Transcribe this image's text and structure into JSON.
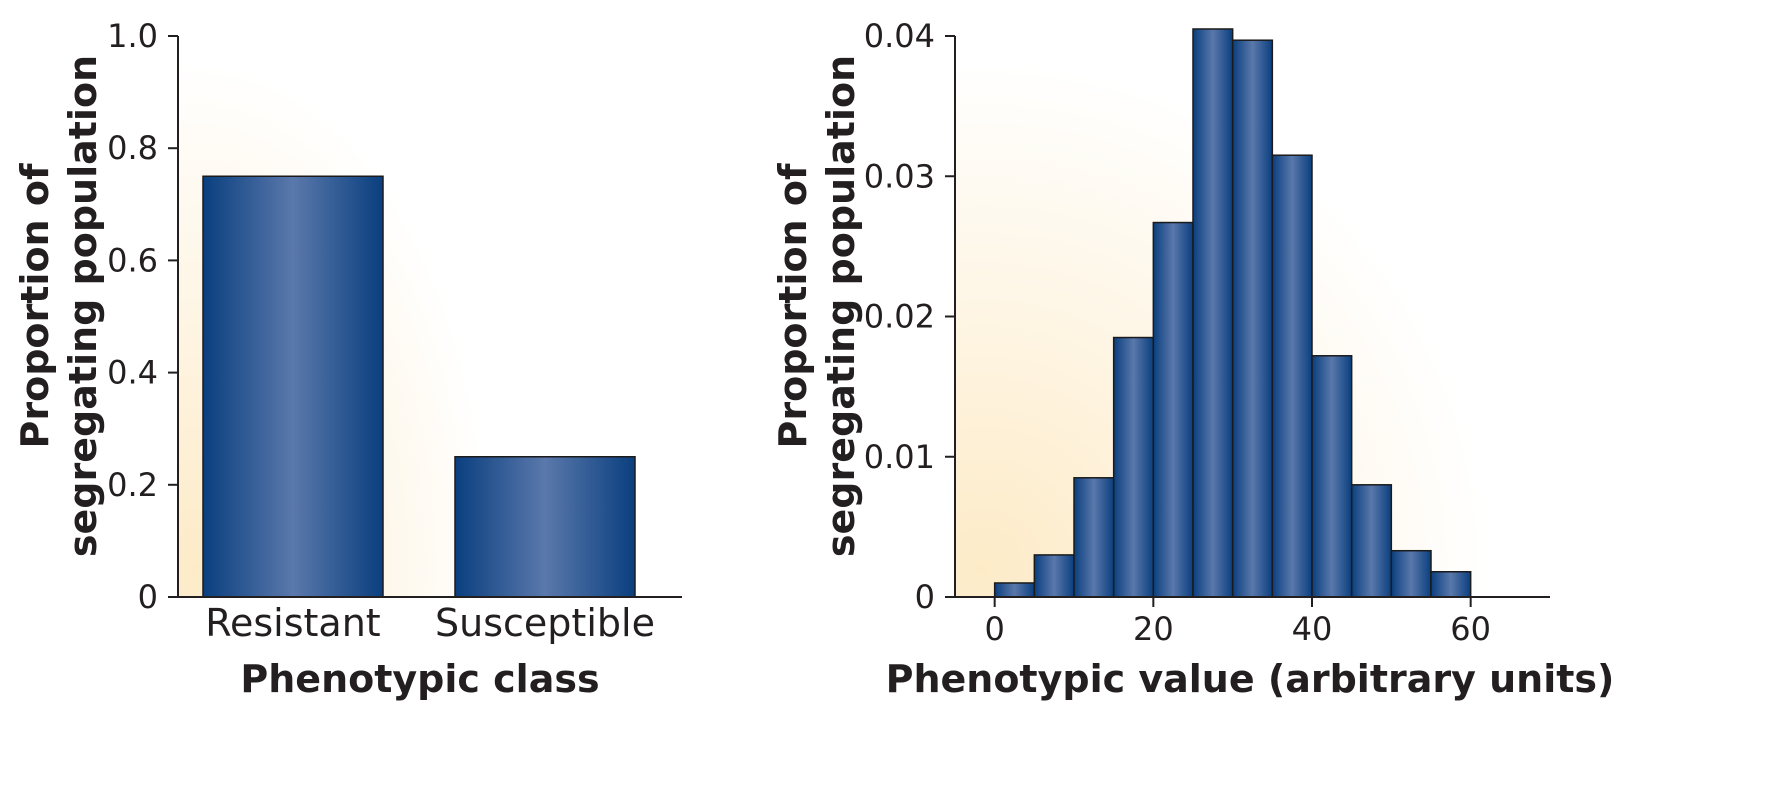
{
  "colors": {
    "bar_dark": "#0a3f7f",
    "bar_light": "#5a78ab",
    "bar_edge": "#1b1b1b",
    "axis": "#231f20",
    "glow": "#fdebc8"
  },
  "chart_data": [
    {
      "type": "bar",
      "categories": [
        "Resistant",
        "Susceptible"
      ],
      "values": [
        0.75,
        0.25
      ],
      "xlabel": "Phenotypic class",
      "ylabel_lines": [
        "Proportion of",
        "segregating population"
      ],
      "ylim": [
        0,
        1.0
      ],
      "yticks": [
        0,
        0.2,
        0.4,
        0.6,
        0.8,
        1.0
      ],
      "ytick_labels": [
        "0",
        "0.2",
        "0.4",
        "0.6",
        "0.8",
        "1.0"
      ],
      "grid": false,
      "legend": "none"
    },
    {
      "type": "bar",
      "subtype": "histogram",
      "bin_edges": [
        0,
        5,
        10,
        15,
        20,
        25,
        30,
        35,
        40,
        45,
        50,
        55,
        60
      ],
      "values": [
        0.001,
        0.003,
        0.0085,
        0.0185,
        0.0267,
        0.0405,
        0.0397,
        0.0315,
        0.0172,
        0.008,
        0.0033,
        0.0018
      ],
      "xlabel": "Phenotypic value (arbitrary units)",
      "ylabel_lines": [
        "Proportion of",
        "segregating population"
      ],
      "xlim": [
        -5,
        70
      ],
      "ylim": [
        0,
        0.04
      ],
      "xticks": [
        0,
        20,
        40,
        60
      ],
      "xtick_labels": [
        "0",
        "20",
        "40",
        "60"
      ],
      "yticks": [
        0,
        0.01,
        0.02,
        0.03,
        0.04
      ],
      "ytick_labels": [
        "0",
        "0.01",
        "0.02",
        "0.03",
        "0.04"
      ],
      "grid": false,
      "legend": "none"
    }
  ]
}
